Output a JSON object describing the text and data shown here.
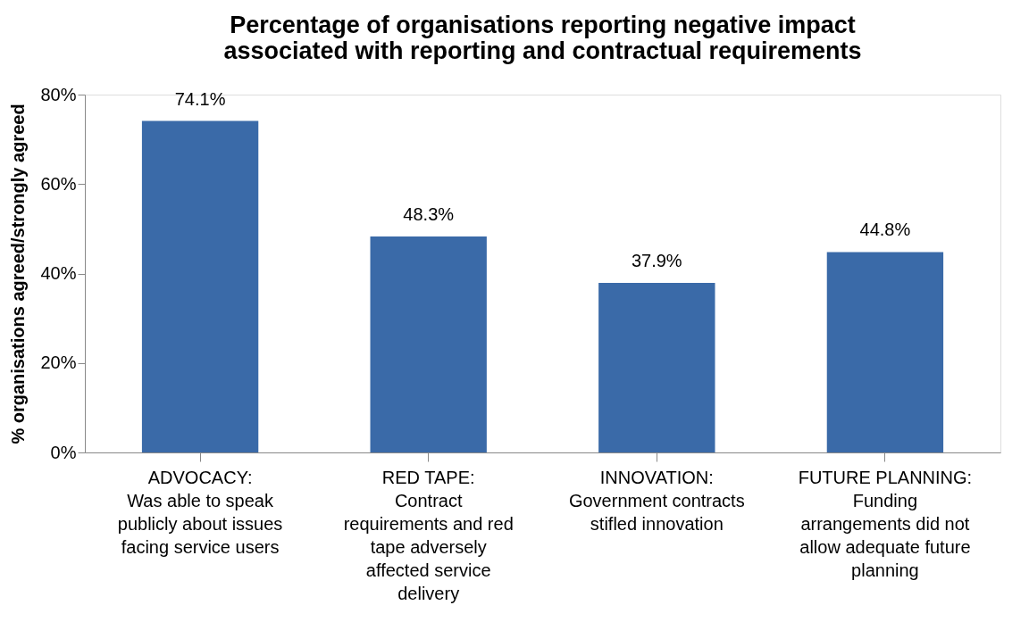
{
  "chart_data": {
    "type": "bar",
    "title": [
      "Percentage of organisations reporting negative impact",
      "associated with reporting and contractual requirements"
    ],
    "ylabel": "% organisations agreed/strongly agreed",
    "categories": [
      "ADVOCACY:\nWas able to speak\npublicly about issues\nfacing service users",
      "RED TAPE:\nContract\nrequirements and red\ntape adversely\naffected service\ndelivery",
      "INNOVATION:\nGovernment contracts\nstifled innovation",
      "FUTURE PLANNING:\nFunding\narrangements did not\nallow adequate future\nplanning"
    ],
    "values": [
      74.1,
      48.3,
      37.9,
      44.8
    ],
    "value_labels": [
      "74.1%",
      "48.3%",
      "37.9%",
      "44.8%"
    ],
    "color": "#3a6aa8",
    "ylim": [
      0,
      80
    ],
    "yticks": [
      {
        "value": 0,
        "label": "0%"
      },
      {
        "value": 20,
        "label": "20%"
      },
      {
        "value": 40,
        "label": "40%"
      },
      {
        "value": 60,
        "label": "60%"
      },
      {
        "value": 80,
        "label": "80%"
      }
    ],
    "grid": false
  }
}
